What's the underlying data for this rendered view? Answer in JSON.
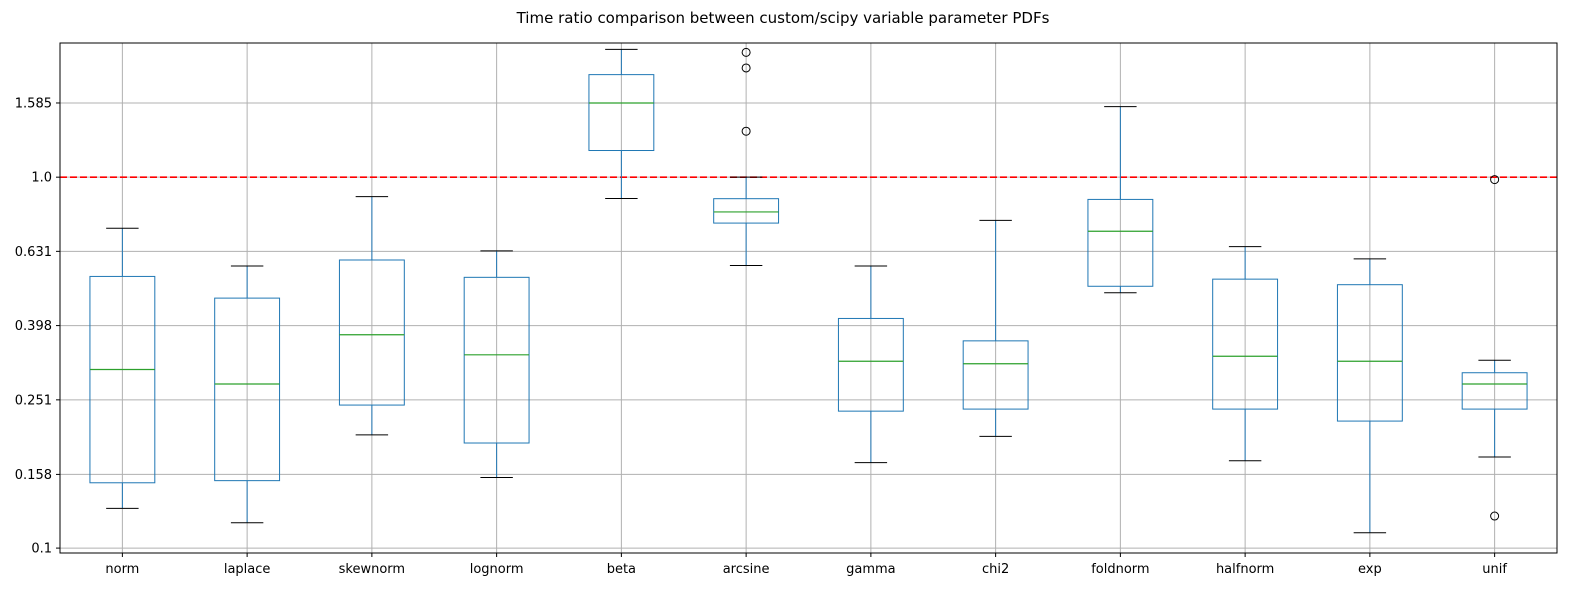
{
  "chart_data": {
    "type": "boxplot",
    "title": "Time ratio comparison between custom/scipy variable parameter PDFs",
    "xlabel": "",
    "ylabel": "",
    "y_scale": "log",
    "ylim": [
      0.097,
      2.3
    ],
    "y_ticks": [
      "0.1",
      "0.158",
      "0.251",
      "0.398",
      "0.631",
      "1.0",
      "1.585"
    ],
    "grid": true,
    "reference_line": {
      "y": 1.0,
      "style": "dashed",
      "color": "#ff0000"
    },
    "box_color": "#1f77b4",
    "median_color": "#2ca02c",
    "categories": [
      "norm",
      "laplace",
      "skewnorm",
      "lognorm",
      "beta",
      "arcsine",
      "gamma",
      "chi2",
      "foldnorm",
      "halfnorm",
      "exp",
      "unif"
    ],
    "boxes": [
      {
        "label": "norm",
        "whislo": 0.128,
        "q1": 0.15,
        "med": 0.303,
        "q3": 0.54,
        "whishi": 0.728,
        "fliers": []
      },
      {
        "label": "laplace",
        "whislo": 0.117,
        "q1": 0.152,
        "med": 0.277,
        "q3": 0.472,
        "whishi": 0.576,
        "fliers": []
      },
      {
        "label": "skewnorm",
        "whislo": 0.202,
        "q1": 0.243,
        "med": 0.376,
        "q3": 0.598,
        "whishi": 0.886,
        "fliers": []
      },
      {
        "label": "lognorm",
        "whislo": 0.155,
        "q1": 0.192,
        "med": 0.332,
        "q3": 0.537,
        "whishi": 0.633,
        "fliers": []
      },
      {
        "label": "beta",
        "whislo": 0.876,
        "q1": 1.18,
        "med": 1.585,
        "q3": 1.89,
        "whishi": 2.21,
        "fliers": []
      },
      {
        "label": "arcsine",
        "whislo": 0.578,
        "q1": 0.752,
        "med": 0.806,
        "q3": 0.875,
        "whishi": 1.0,
        "fliers": [
          1.33,
          1.97,
          2.17
        ]
      },
      {
        "label": "gamma",
        "whislo": 0.17,
        "q1": 0.234,
        "med": 0.319,
        "q3": 0.416,
        "whishi": 0.576,
        "fliers": []
      },
      {
        "label": "chi2",
        "whislo": 0.2,
        "q1": 0.237,
        "med": 0.314,
        "q3": 0.362,
        "whishi": 0.765,
        "fliers": []
      },
      {
        "label": "foldnorm",
        "whislo": 0.488,
        "q1": 0.508,
        "med": 0.715,
        "q3": 0.871,
        "whishi": 1.55,
        "fliers": []
      },
      {
        "label": "halfnorm",
        "whislo": 0.172,
        "q1": 0.237,
        "med": 0.329,
        "q3": 0.531,
        "whishi": 0.65,
        "fliers": []
      },
      {
        "label": "exp",
        "whislo": 0.11,
        "q1": 0.22,
        "med": 0.319,
        "q3": 0.513,
        "whishi": 0.602,
        "fliers": []
      },
      {
        "label": "unif",
        "whislo": 0.176,
        "q1": 0.237,
        "med": 0.277,
        "q3": 0.297,
        "whishi": 0.321,
        "fliers": [
          0.985,
          0.122
        ]
      }
    ]
  }
}
